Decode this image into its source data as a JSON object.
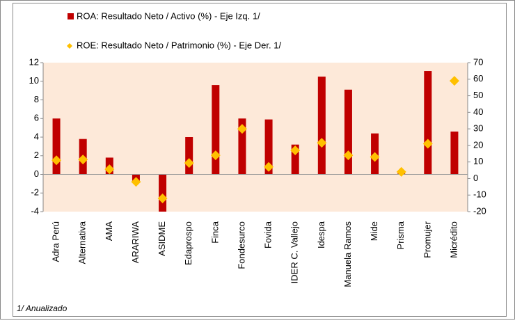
{
  "chart_data": {
    "type": "bar_scatter",
    "categories": [
      "Adra Perú",
      "Alternativa",
      "AMA",
      "ARARIWA",
      "ASIDME",
      "Edaprospo",
      "Finca",
      "Fondesurco",
      "Fovida",
      "IDER C. Vallejo",
      "Idespa",
      "Manuela Ramos",
      "Mide",
      "Prisma",
      "Promujer",
      "Micrédito"
    ],
    "series": [
      {
        "name": "ROA: Resultado Neto / Activo (%) - Eje Izq.  1/",
        "color": "#c00000",
        "axis": "y",
        "values": [
          6.0,
          3.8,
          1.8,
          -0.8,
          -4.6,
          4.0,
          9.6,
          6.0,
          5.9,
          3.2,
          10.5,
          9.1,
          4.4,
          0.1,
          11.1,
          4.6
        ]
      },
      {
        "name": "ROE: Resultado Neto / Patrimonio (%) - Eje Der.  1/",
        "color": "#ffc000",
        "axis": "y2",
        "values": [
          11,
          11.5,
          5.6,
          -2,
          -12,
          9.4,
          14,
          30,
          7,
          17,
          21.6,
          14,
          13,
          4,
          21,
          59
        ]
      }
    ],
    "ylim": [
      -4,
      12
    ],
    "yticks": [
      12,
      10,
      8,
      6,
      4,
      2,
      0,
      -2,
      -4
    ],
    "y2lim": [
      -20,
      70
    ],
    "y2ticks": [
      70,
      60,
      50,
      40,
      30,
      20,
      10,
      0,
      -10,
      -20
    ],
    "legend": "top",
    "annotation": "1/ Anualizado"
  }
}
